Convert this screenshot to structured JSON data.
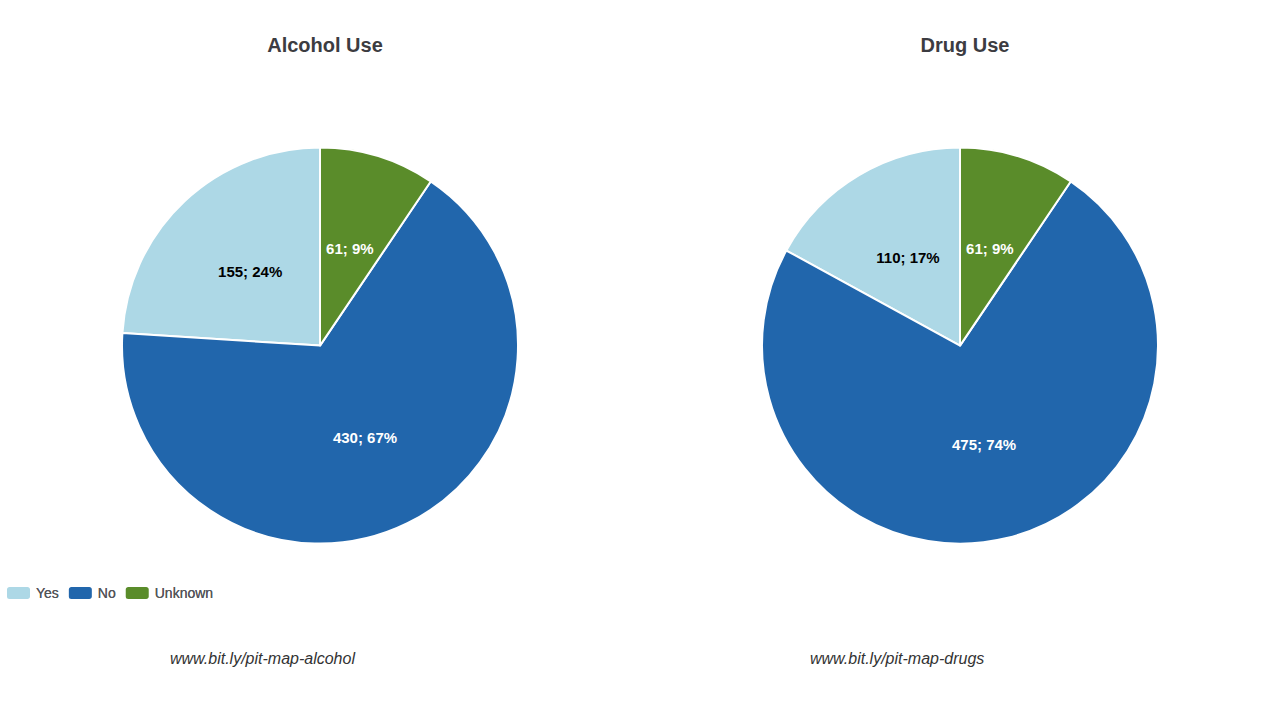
{
  "chart_data": [
    {
      "type": "pie",
      "title": "Alcohol Use",
      "categories": [
        "Yes",
        "No",
        "Unknown"
      ],
      "values": [
        155,
        430,
        61
      ],
      "value_labels": [
        "155; 24%",
        "430; 67%",
        "61; 9%"
      ],
      "colors": [
        "#ADD8E6",
        "#2166AC",
        "#5A8C2A"
      ],
      "data_labels": true,
      "legend": "bottom",
      "annotation": "www.bit.ly/pit-map-alcohol"
    },
    {
      "type": "pie",
      "title": "Drug Use",
      "categories": [
        "Yes",
        "No",
        "Unknown"
      ],
      "values": [
        110,
        475,
        61
      ],
      "value_labels": [
        "110; 17%",
        "475; 74%",
        "61; 9%"
      ],
      "colors": [
        "#ADD8E6",
        "#2166AC",
        "#5A8C2A"
      ],
      "data_labels": true,
      "legend": "bottom",
      "annotation": "www.bit.ly/pit-map-drugs"
    }
  ]
}
